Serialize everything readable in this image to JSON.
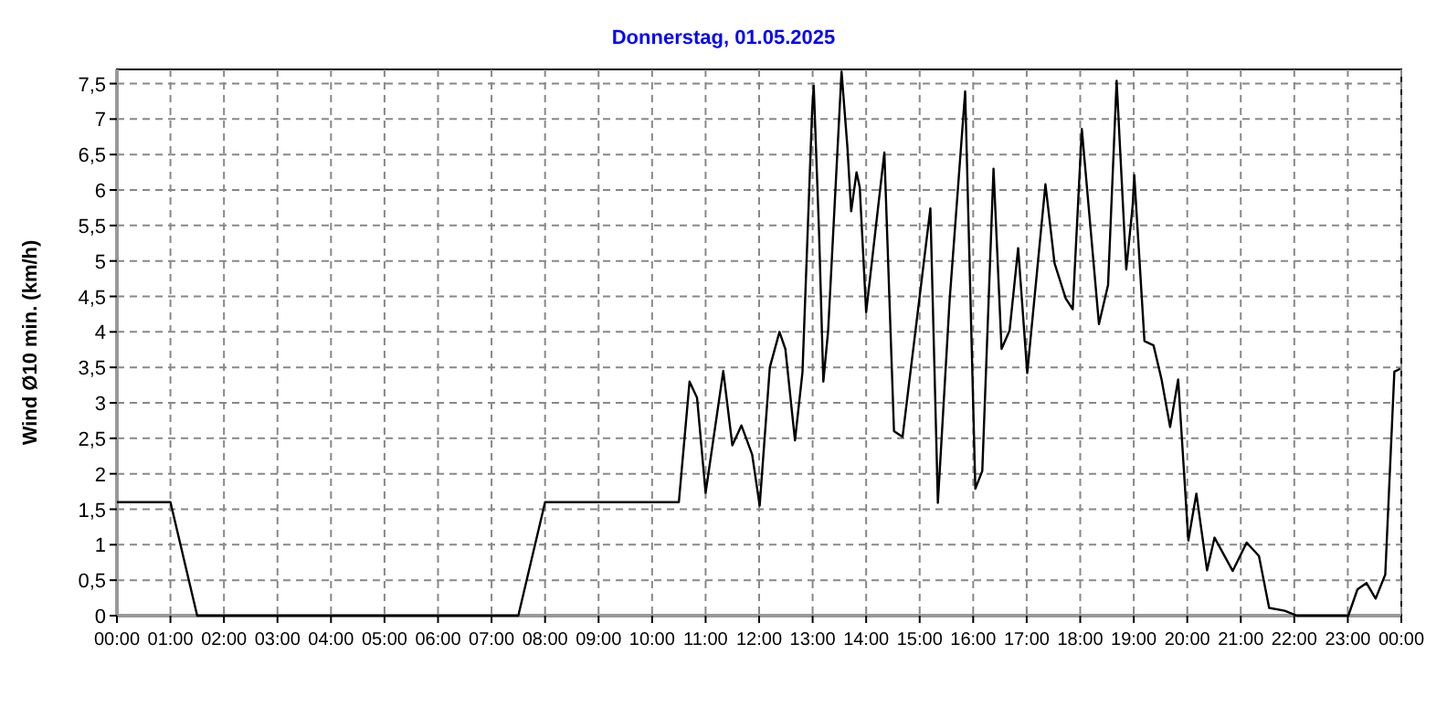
{
  "chart_data": {
    "type": "line",
    "title": "Donnerstag, 01.05.2025",
    "ylabel": "Wind Ø10 min.  (km/h)",
    "x": [
      0,
      1.0,
      1.5,
      7.5,
      8.0,
      10.5,
      10.7,
      10.84,
      11.0,
      11.33,
      11.5,
      11.67,
      11.87,
      12.01,
      12.2,
      12.38,
      12.49,
      12.67,
      12.81,
      12.99,
      13.02,
      13.12,
      13.2,
      13.29,
      13.54,
      13.65,
      13.72,
      13.82,
      13.88,
      14.0,
      14.34,
      14.52,
      14.68,
      15.2,
      15.34,
      15.56,
      15.85,
      16.04,
      16.17,
      16.38,
      16.53,
      16.68,
      16.84,
      17.01,
      17.35,
      17.52,
      17.73,
      17.86,
      18.03,
      18.35,
      18.52,
      18.68,
      18.86,
      18.98,
      19.01,
      19.2,
      19.37,
      19.52,
      19.68,
      19.83,
      20.02,
      20.17,
      20.37,
      20.51,
      20.85,
      21.11,
      21.34,
      21.53,
      21.82,
      22.05,
      23.01,
      23.18,
      23.35,
      23.52,
      23.7,
      23.87,
      23.98
    ],
    "series": [
      {
        "color": "#000000",
        "values": [
          1.6,
          1.6,
          0,
          0,
          1.6,
          1.6,
          3.3,
          3.07,
          1.73,
          3.45,
          2.4,
          2.68,
          2.27,
          1.55,
          3.5,
          4.0,
          3.76,
          2.47,
          3.43,
          7.11,
          7.47,
          5.4,
          3.3,
          4.02,
          7.67,
          6.6,
          5.7,
          6.25,
          6.04,
          4.28,
          6.53,
          2.6,
          2.52,
          5.74,
          1.59,
          4.45,
          7.39,
          1.79,
          2.04,
          6.3,
          3.76,
          4.02,
          5.18,
          3.42,
          6.08,
          4.97,
          4.47,
          4.32,
          6.86,
          4.11,
          4.66,
          7.54,
          4.88,
          5.78,
          6.21,
          3.87,
          3.81,
          3.33,
          2.66,
          3.33,
          1.06,
          1.72,
          0.64,
          1.1,
          0.63,
          1.03,
          0.84,
          0.11,
          0.07,
          0,
          0,
          0.37,
          0.46,
          0.24,
          0.58,
          3.44,
          3.48
        ]
      }
    ],
    "xlim": [
      0,
      24
    ],
    "xticks": [
      {
        "value": 0,
        "label": "00:00"
      },
      {
        "value": 1,
        "label": "01:00"
      },
      {
        "value": 2,
        "label": "02:00"
      },
      {
        "value": 3,
        "label": "03:00"
      },
      {
        "value": 4,
        "label": "04:00"
      },
      {
        "value": 5,
        "label": "05:00"
      },
      {
        "value": 6,
        "label": "06:00"
      },
      {
        "value": 7,
        "label": "07:00"
      },
      {
        "value": 8,
        "label": "08:00"
      },
      {
        "value": 9,
        "label": "09:00"
      },
      {
        "value": 10,
        "label": "10:00"
      },
      {
        "value": 11,
        "label": "11:00"
      },
      {
        "value": 12,
        "label": "12:00"
      },
      {
        "value": 13,
        "label": "13:00"
      },
      {
        "value": 14,
        "label": "14:00"
      },
      {
        "value": 15,
        "label": "15:00"
      },
      {
        "value": 16,
        "label": "16:00"
      },
      {
        "value": 17,
        "label": "17:00"
      },
      {
        "value": 18,
        "label": "18:00"
      },
      {
        "value": 19,
        "label": "19:00"
      },
      {
        "value": 20,
        "label": "20:00"
      },
      {
        "value": 21,
        "label": "21:00"
      },
      {
        "value": 22,
        "label": "22:00"
      },
      {
        "value": 23,
        "label": "23:00"
      },
      {
        "value": 24,
        "label": "00:00"
      }
    ],
    "ylim": [
      0,
      7.7
    ],
    "yticks": [
      0,
      {
        "value": 0.5,
        "label": "0,5"
      },
      1,
      {
        "value": 1.5,
        "label": "1,5"
      },
      2,
      {
        "value": 2.5,
        "label": "2,5"
      },
      3,
      {
        "value": 3.5,
        "label": "3,5"
      },
      4,
      {
        "value": 4.5,
        "label": "4,5"
      },
      5,
      {
        "value": 5.5,
        "label": "5,5"
      },
      6,
      {
        "value": 6.5,
        "label": "6,5"
      },
      7,
      {
        "value": 7.5,
        "label": "7,5"
      }
    ],
    "grid": true,
    "line_style": "solid",
    "marker": "none"
  }
}
